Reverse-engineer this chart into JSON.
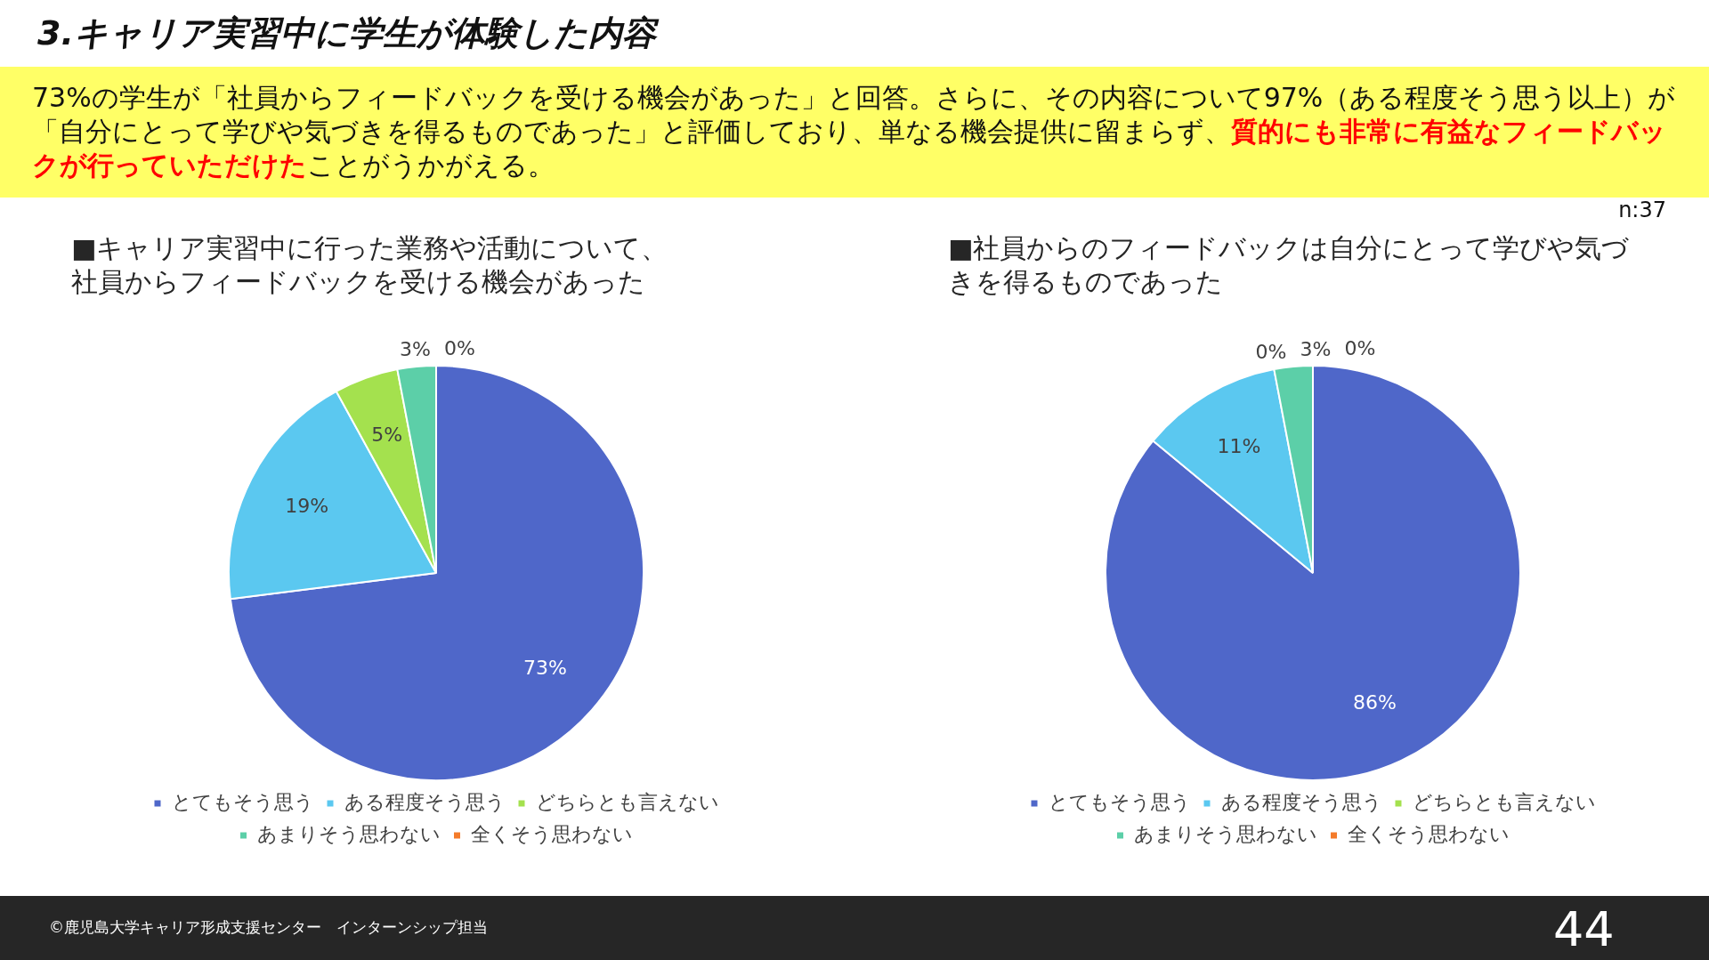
{
  "chart_data": [
    {
      "type": "pie",
      "title": "■キャリア実習中に行った業務や活動について、社員からフィードバックを受ける機会があった",
      "categories": [
        "とてもそう思う",
        "ある程度そう思う",
        "どちらとも言えない",
        "あまりそう思わない",
        "全くそう思わない"
      ],
      "values": [
        73,
        19,
        5,
        3,
        0
      ],
      "value_labels": [
        "73%",
        "19%",
        "5%",
        "3%",
        "0%"
      ],
      "colors": [
        "#4f67c9",
        "#5bc8f0",
        "#a4e14e",
        "#5ccfa8",
        "#f47b2a"
      ],
      "legend": "bottom",
      "annotations": [
        "3.キャリア実習中に学生が体験した内容",
        "73%の学生が「社員からフィードバックを受ける機会があった」と回答。さらに、その内容について97%（ある程度そう思う以上）が「自分にとって学びや気づきを得るものであった」と評価しており、単なる機会提供に留まらず、",
        "質的にも非常に有益なフィードバックが行っていただけた",
        "ことがうかがえる。"
      ]
    },
    {
      "type": "pie",
      "title": "■社員からのフィードバックは自分にとって学びや気づきを得るものであった",
      "categories": [
        "とてもそう思う",
        "ある程度そう思う",
        "どちらとも言えない",
        "あまりそう思わない",
        "全くそう思わない"
      ],
      "values": [
        86,
        11,
        0,
        3,
        0
      ],
      "value_labels": [
        "86%",
        "11%",
        "0%",
        "3%",
        "0%"
      ],
      "colors": [
        "#4f67c9",
        "#5bc8f0",
        "#a4e14e",
        "#5ccfa8",
        "#f47b2a"
      ],
      "legend": "bottom",
      "annotations": [
        "n:37",
        "©鹿児島大学キャリア形成支援センター　インターンシップ担当",
        "44"
      ]
    }
  ]
}
